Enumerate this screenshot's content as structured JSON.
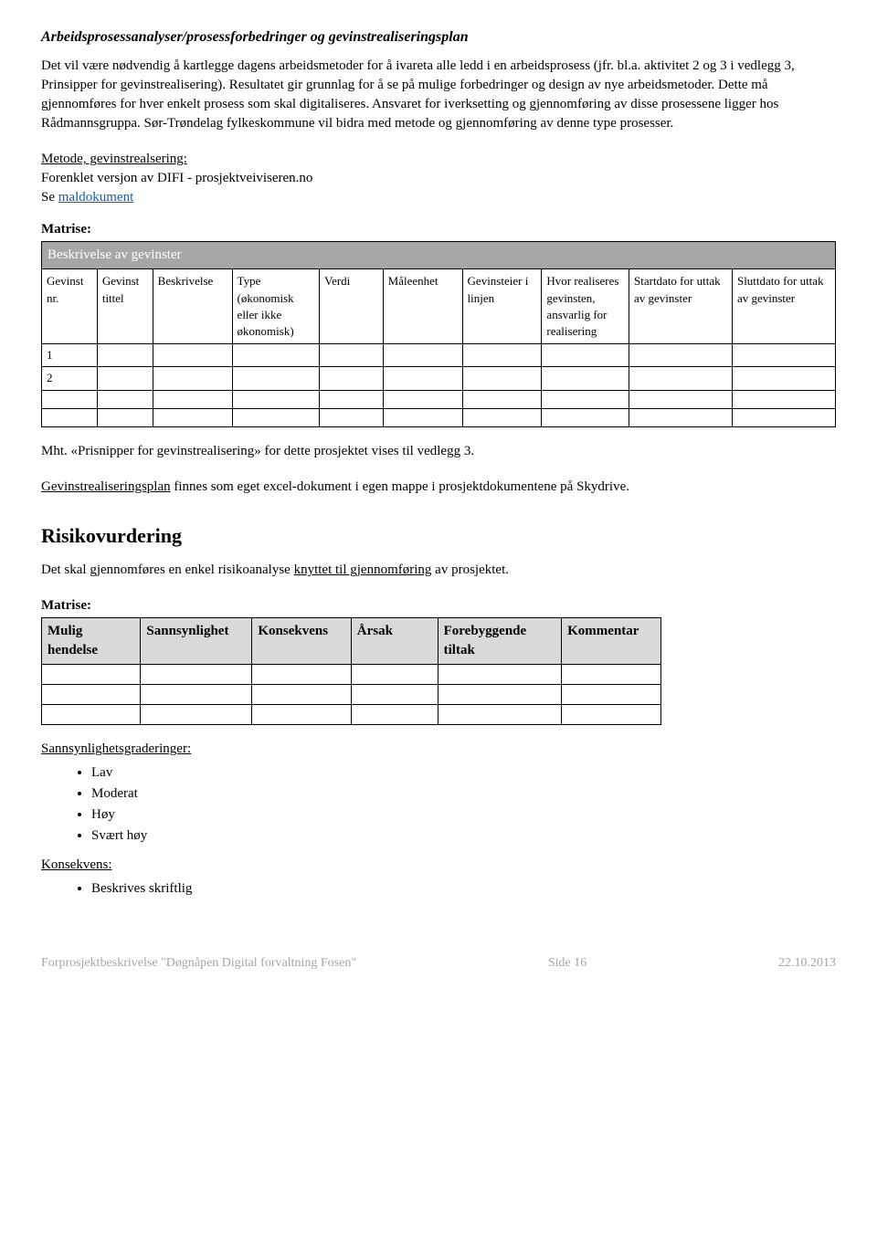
{
  "title": "Arbeidsprosessanalyser/prosessforbedringer og gevinstrealiseringsplan",
  "intro_para": "Det vil være nødvendig å kartlegge dagens arbeidsmetoder for å ivareta alle ledd i en arbeidsprosess (jfr. bl.a. aktivitet 2 og 3 i vedlegg 3, Prinsipper for gevinstrealisering). Resultatet gir grunnlag for å se på mulige forbedringer og design av nye arbeidsmetoder. Dette må gjennomføres for hver enkelt prosess som skal digitaliseres. Ansvaret for iverksetting og gjennomføring av disse prosessene ligger hos Rådmannsgruppa. Sør-Trøndelag fylkeskommune vil bidra med metode og gjennomføring av denne type prosesser.",
  "metode_heading": "Metode, gevinstrealsering:",
  "metode_line": "Forenklet versjon av DIFI - prosjektveiviseren.no",
  "se_prefix": "Se ",
  "maldokument_link": "maldokument",
  "matrise_label": "Matrise:",
  "gains_table": {
    "header_bar": "Beskrivelse av gevinster",
    "columns": [
      "Gevinst nr.",
      "Gevinst tittel",
      "Beskrivelse",
      "Type (økonomisk eller ikke økonomisk)",
      "Verdi",
      "Måleenhet",
      "Gevinsteier i linjen",
      "Hvor realiseres gevinsten, ansvarlig for realisering",
      "Startdato for uttak av gevinster",
      "Sluttdato for uttak av gevinster"
    ],
    "row1_first": "1",
    "row2_first": "2"
  },
  "mht_line": "Mht. «Prisnipper for gevinstrealisering» for dette prosjektet vises til vedlegg 3.",
  "plan_underline": "Gevinstrealiseringsplan",
  "plan_rest": " finnes som eget excel-dokument i egen mappe i prosjektdokumentene på Skydrive.",
  "risiko_heading": "Risikovurdering",
  "risiko_intro_pre": "Det skal gjennomføres en enkel risikoanalyse ",
  "risiko_intro_underline": "knyttet til gjennomføring",
  "risiko_intro_post": " av prosjektet.",
  "risk_table": {
    "columns": [
      "Mulig hendelse",
      "Sannsynlighet",
      "Konsekvens",
      "Årsak",
      "Forebyggende tiltak",
      "Kommentar"
    ]
  },
  "sannsyn_heading": "Sannsynlighetsgraderinger:",
  "sannsyn_items": [
    "Lav",
    "Moderat",
    "Høy",
    "Svært høy"
  ],
  "konsekvens_heading": "Konsekvens:",
  "konsekvens_items": [
    "Beskrives skriftlig"
  ],
  "footer": {
    "left": "Forprosjektbeskrivelse \"Døgnåpen Digital forvaltning Fosen\"",
    "center": "Side 16",
    "right": "22.10.2013"
  },
  "col_widths": {
    "gains": [
      "7%",
      "7%",
      "10%",
      "11%",
      "8%",
      "10%",
      "10%",
      "11%",
      "13%",
      "13%"
    ],
    "risk": [
      "16%",
      "18%",
      "16%",
      "14%",
      "20%",
      "16%"
    ]
  }
}
